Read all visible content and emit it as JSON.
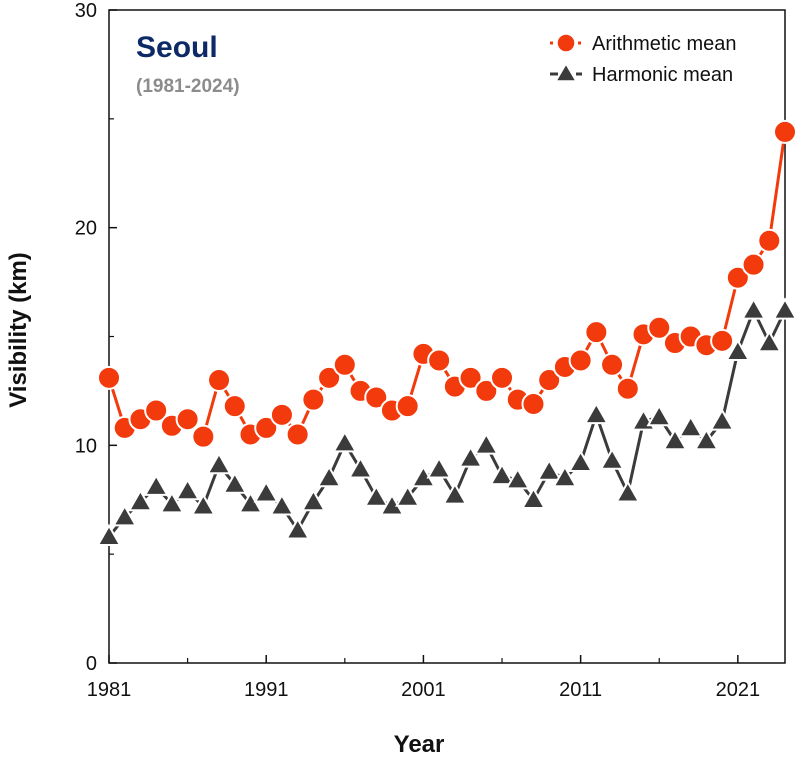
{
  "chart_data": {
    "type": "line",
    "title": "Seoul",
    "subtitle": "(1981-2024)",
    "xlabel": "Year",
    "ylabel": "Visibility (km)",
    "xlim": [
      1981,
      2024
    ],
    "ylim": [
      0,
      30
    ],
    "x_ticks": [
      1981,
      1991,
      2001,
      2011,
      2021
    ],
    "y_ticks": [
      0,
      10,
      20,
      30
    ],
    "grid": false,
    "legend_position": "top-right",
    "x": [
      1981,
      1982,
      1983,
      1984,
      1985,
      1986,
      1987,
      1988,
      1989,
      1990,
      1991,
      1992,
      1993,
      1994,
      1995,
      1996,
      1997,
      1998,
      1999,
      2000,
      2001,
      2002,
      2003,
      2004,
      2005,
      2006,
      2007,
      2008,
      2009,
      2010,
      2011,
      2012,
      2013,
      2014,
      2015,
      2016,
      2017,
      2018,
      2019,
      2020,
      2021,
      2022,
      2023,
      2024
    ],
    "series": [
      {
        "name": "Arithmetic mean",
        "marker": "circle",
        "line_style": "dotted",
        "color": "#f23a0c",
        "values": [
          13.1,
          10.8,
          11.2,
          11.6,
          10.9,
          11.2,
          10.4,
          13.0,
          11.8,
          10.5,
          10.8,
          11.4,
          10.5,
          12.1,
          13.1,
          13.7,
          12.5,
          12.2,
          11.6,
          11.8,
          14.2,
          13.9,
          12.7,
          13.1,
          12.5,
          13.1,
          12.1,
          11.9,
          13.0,
          13.6,
          13.9,
          15.2,
          13.7,
          12.6,
          15.1,
          15.4,
          14.7,
          15.0,
          14.6,
          14.8,
          17.7,
          18.3,
          19.4,
          24.4
        ]
      },
      {
        "name": "Harmonic mean",
        "marker": "triangle",
        "line_style": "dashed",
        "color": "#3b3b3b",
        "values": [
          5.8,
          6.7,
          7.4,
          8.1,
          7.3,
          7.9,
          7.2,
          9.1,
          8.2,
          7.3,
          7.8,
          7.2,
          6.1,
          7.4,
          8.5,
          10.1,
          8.9,
          7.6,
          7.2,
          7.6,
          8.5,
          8.9,
          7.7,
          9.4,
          10.0,
          8.6,
          8.4,
          7.5,
          8.8,
          8.5,
          9.2,
          11.4,
          9.3,
          7.8,
          11.1,
          11.3,
          10.2,
          10.8,
          10.2,
          11.1,
          14.3,
          16.2,
          14.7,
          16.2
        ]
      }
    ]
  },
  "style": {
    "title_color": "#0d2a66",
    "subtitle_color": "#8c8c8c",
    "axis_color": "#111111",
    "marker_outline": "#ffffff"
  }
}
